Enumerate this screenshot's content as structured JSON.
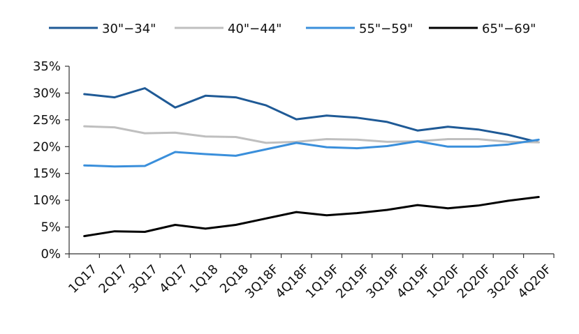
{
  "chart_data": {
    "type": "line",
    "title": "",
    "xlabel": "",
    "ylabel": "",
    "categories": [
      "1Q17",
      "2Q17",
      "3Q17",
      "4Q17",
      "1Q18",
      "2Q18",
      "3Q18F",
      "4Q18F",
      "1Q19F",
      "2Q19F",
      "3Q19F",
      "4Q19F",
      "1Q20F",
      "2Q20F",
      "3Q20F",
      "4Q20F"
    ],
    "ylim": [
      0,
      35
    ],
    "yticks": [
      0,
      5,
      10,
      15,
      20,
      25,
      30,
      35
    ],
    "ytick_labels": [
      "0%",
      "5%",
      "10%",
      "15%",
      "20%",
      "25%",
      "30%",
      "35%"
    ],
    "grid": false,
    "legend_position": "top",
    "series": [
      {
        "name": "30\"−34\"",
        "color": "#1f5a96",
        "values": [
          29.8,
          29.2,
          30.9,
          27.3,
          29.5,
          29.2,
          27.7,
          25.1,
          25.8,
          25.4,
          24.6,
          23.0,
          23.7,
          23.2,
          22.2,
          20.8
        ]
      },
      {
        "name": "40\"−44\"",
        "color": "#bfbfbf",
        "values": [
          23.8,
          23.6,
          22.5,
          22.6,
          21.9,
          21.8,
          20.7,
          20.9,
          21.4,
          21.3,
          20.9,
          21.0,
          21.4,
          21.4,
          20.9,
          20.8
        ]
      },
      {
        "name": "55\"−59\"",
        "color": "#3a8fdb",
        "values": [
          16.5,
          16.3,
          16.4,
          19.0,
          18.6,
          18.3,
          19.5,
          20.7,
          19.9,
          19.7,
          20.1,
          21.0,
          20.0,
          20.0,
          20.4,
          21.3
        ]
      },
      {
        "name": "65\"−69\"",
        "color": "#000000",
        "values": [
          3.3,
          4.2,
          4.1,
          5.4,
          4.7,
          5.4,
          6.6,
          7.8,
          7.2,
          7.6,
          8.2,
          9.1,
          8.5,
          9.0,
          9.9,
          10.6
        ]
      }
    ]
  }
}
